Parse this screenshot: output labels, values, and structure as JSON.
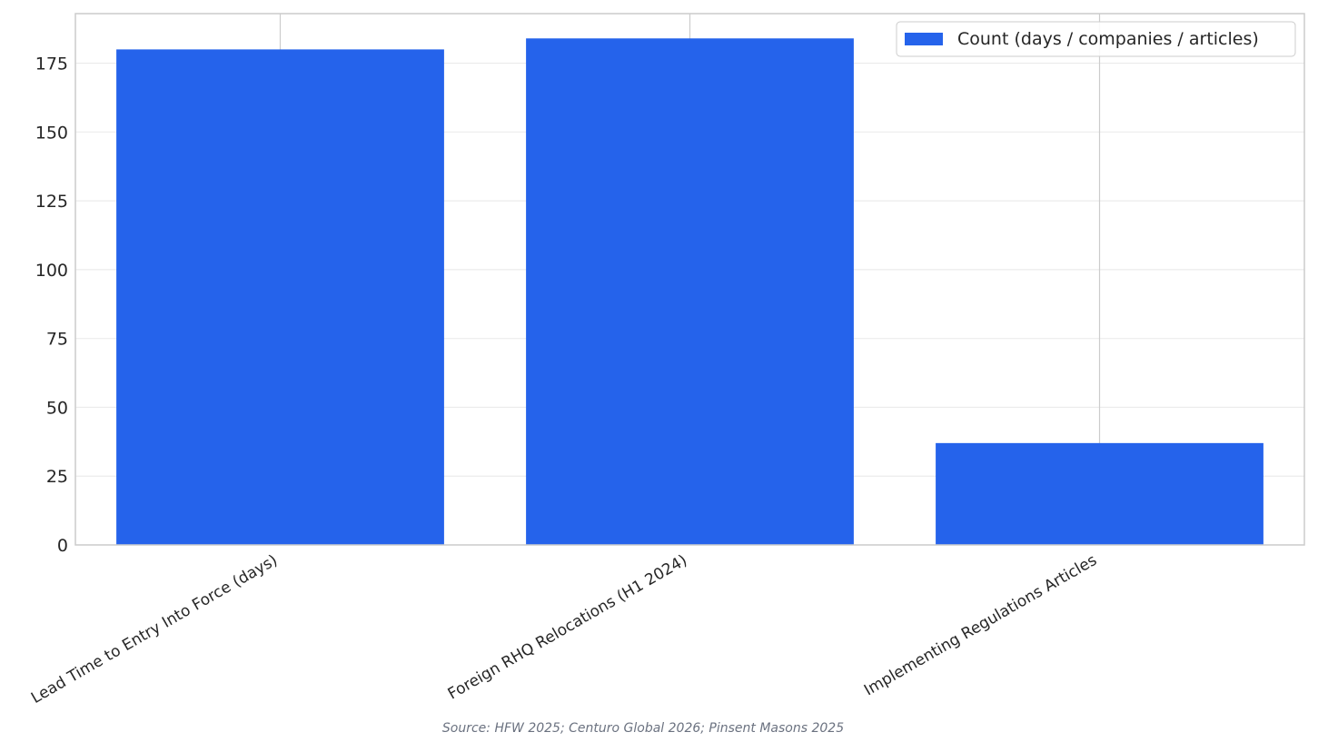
{
  "chart_data": {
    "type": "bar",
    "categories": [
      "Lead Time to Entry Into Force (days)",
      "Foreign RHQ Relocations (H1 2024)",
      "Implementing Regulations Articles"
    ],
    "series": [
      {
        "name": "Count (days / companies / articles)",
        "values": [
          180,
          184,
          37
        ],
        "color": "#2563eb"
      }
    ],
    "yticks": [
      0,
      25,
      50,
      75,
      100,
      125,
      150,
      175
    ],
    "ylim": [
      0,
      193
    ],
    "grid": true,
    "legend_position": "top-right",
    "title": "",
    "xlabel": "",
    "ylabel": ""
  },
  "source_note": "Source: HFW 2025; Centuro Global 2026; Pinsent Masons 2025",
  "colors": {
    "bar": "#2563eb",
    "grid": "#ebebeb",
    "axes_border": "#cccccc",
    "text": "#262626"
  }
}
